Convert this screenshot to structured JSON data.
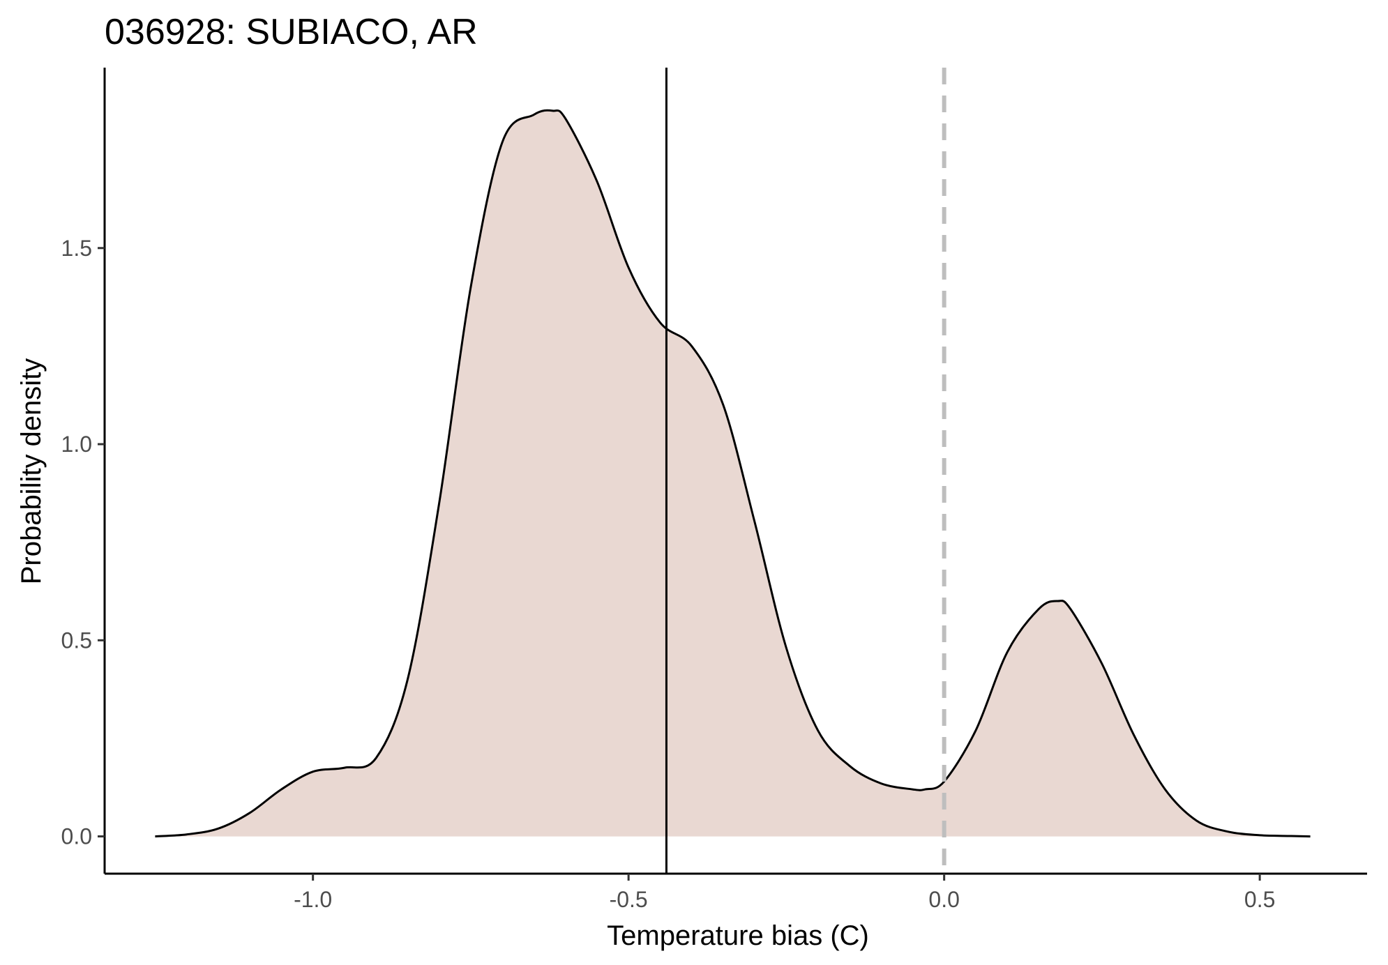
{
  "chart_data": {
    "type": "area",
    "title": "036928: SUBIACO, AR",
    "xlabel": "Temperature bias (C)",
    "ylabel": "Probability density",
    "xlim": [
      -1.33,
      0.67
    ],
    "ylim": [
      -0.095,
      1.96
    ],
    "x_ticks": [
      -1.0,
      -0.5,
      0.0,
      0.5
    ],
    "x_tick_labels": [
      "-1.0",
      "-0.5",
      "0.0",
      "0.5"
    ],
    "y_ticks": [
      0.0,
      0.5,
      1.0,
      1.5
    ],
    "y_tick_labels": [
      "0.0",
      "0.5",
      "1.0",
      "1.5"
    ],
    "grid": false,
    "fill_color": "#e9d8d2",
    "line_color": "#000000",
    "mean_line": {
      "x": -0.44,
      "color": "#000000"
    },
    "zero_line": {
      "x": 0.0,
      "color": "#bebebe",
      "style": "dashed"
    },
    "series": [
      {
        "x": [
          -1.25,
          -1.2,
          -1.15,
          -1.1,
          -1.05,
          -1.0,
          -0.95,
          -0.9,
          -0.85,
          -0.8,
          -0.75,
          -0.7,
          -0.65,
          -0.62,
          -0.6,
          -0.55,
          -0.5,
          -0.45,
          -0.4,
          -0.35,
          -0.3,
          -0.25,
          -0.2,
          -0.15,
          -0.1,
          -0.05,
          -0.03,
          0.0,
          0.05,
          0.1,
          0.15,
          0.18,
          0.2,
          0.25,
          0.3,
          0.35,
          0.4,
          0.45,
          0.5,
          0.55,
          0.58
        ],
        "y": [
          0.0,
          0.005,
          0.02,
          0.06,
          0.12,
          0.165,
          0.175,
          0.2,
          0.4,
          0.85,
          1.4,
          1.77,
          1.84,
          1.85,
          1.83,
          1.67,
          1.45,
          1.31,
          1.25,
          1.1,
          0.8,
          0.48,
          0.27,
          0.18,
          0.135,
          0.12,
          0.12,
          0.14,
          0.27,
          0.47,
          0.58,
          0.6,
          0.58,
          0.44,
          0.26,
          0.12,
          0.04,
          0.012,
          0.003,
          0.001,
          0.0
        ]
      }
    ]
  }
}
